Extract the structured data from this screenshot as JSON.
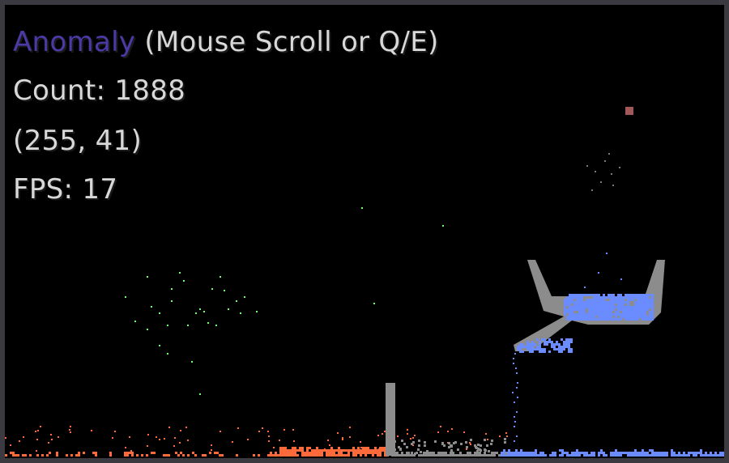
{
  "hud": {
    "material_name": "Anomaly",
    "material_hint": "(Mouse Scroll or Q/E)",
    "count_label": "Count: 1888",
    "coords_label": "(255, 41)",
    "fps_label": "FPS: 17"
  },
  "colors": {
    "background": "#000000",
    "frame": "#3a3a40",
    "material_accent": "#4a3aa6",
    "hud_text": "#d8d8d8",
    "wall": "#8c8c8c",
    "water": "#6a8cff",
    "fire": "#ff6a3a",
    "spore": "#6cff6c",
    "cursor_particle": "#a05858",
    "smoke": "#7a7a7a"
  }
}
